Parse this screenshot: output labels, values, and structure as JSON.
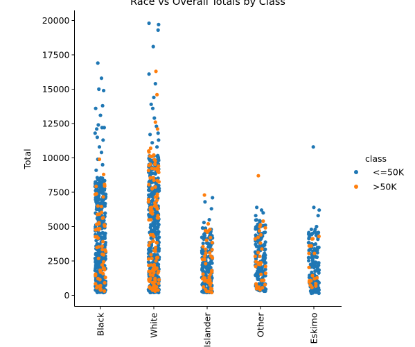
{
  "chart_data": {
    "type": "scatter",
    "subtype": "strip",
    "title": "Race vs Overall Totals by Class",
    "xlabel": "",
    "ylabel": "Total",
    "categories": [
      "Black",
      "White",
      "Islander",
      "Other",
      "Eskimo"
    ],
    "yticks": [
      "0",
      "2500",
      "5000",
      "7500",
      "10000",
      "12500",
      "15000",
      "17500",
      "20000"
    ],
    "ylim": [
      -800,
      20800
    ],
    "grid": false,
    "legend": {
      "title": "class",
      "placement": "center-right",
      "entries": [
        {
          "name": "<=50K",
          "color": "#1f77b4"
        },
        {
          "name": ">50K",
          "color": "#ff7f0e"
        }
      ]
    },
    "series": [
      {
        "name": "<=50K",
        "color": "#1f77b4",
        "ranges": [
          {
            "category": "Black",
            "min": 200,
            "max": 8600,
            "count": 360
          },
          {
            "category": "White",
            "min": 200,
            "max": 10200,
            "count": 380
          },
          {
            "category": "Islander",
            "min": 200,
            "max": 4900,
            "count": 170
          },
          {
            "category": "Other",
            "min": 300,
            "max": 5500,
            "count": 150
          },
          {
            "category": "Eskimo",
            "min": 150,
            "max": 4800,
            "count": 130
          }
        ],
        "outliers": [
          {
            "category": "Black",
            "x": -0.05,
            "y": 16900
          },
          {
            "category": "Black",
            "x": 0.02,
            "y": 15800
          },
          {
            "category": "Black",
            "x": -0.03,
            "y": 15000
          },
          {
            "category": "Black",
            "x": 0.06,
            "y": 14900
          },
          {
            "category": "Black",
            "x": 0.04,
            "y": 13800
          },
          {
            "category": "Black",
            "x": -0.09,
            "y": 13600
          },
          {
            "category": "Black",
            "x": 0.0,
            "y": 13100
          },
          {
            "category": "Black",
            "x": -0.04,
            "y": 12400
          },
          {
            "category": "Black",
            "x": 0.03,
            "y": 12200
          },
          {
            "category": "Black",
            "x": -0.07,
            "y": 12100
          },
          {
            "category": "Black",
            "x": 0.07,
            "y": 12200
          },
          {
            "category": "Black",
            "x": -0.1,
            "y": 11800
          },
          {
            "category": "Black",
            "x": -0.06,
            "y": 11500
          },
          {
            "category": "Black",
            "x": 0.05,
            "y": 11300
          },
          {
            "category": "Black",
            "x": -0.02,
            "y": 10800
          },
          {
            "category": "Black",
            "x": 0.02,
            "y": 10400
          },
          {
            "category": "Black",
            "x": -0.05,
            "y": 9900
          },
          {
            "category": "Black",
            "x": 0.04,
            "y": 9500
          },
          {
            "category": "Black",
            "x": -0.08,
            "y": 9100
          },
          {
            "category": "White",
            "x": -0.09,
            "y": 19800
          },
          {
            "category": "White",
            "x": 0.09,
            "y": 19700
          },
          {
            "category": "White",
            "x": 0.08,
            "y": 19300
          },
          {
            "category": "White",
            "x": -0.01,
            "y": 18100
          },
          {
            "category": "White",
            "x": -0.09,
            "y": 16100
          },
          {
            "category": "White",
            "x": 0.03,
            "y": 15400
          },
          {
            "category": "White",
            "x": 0.0,
            "y": 14400
          },
          {
            "category": "White",
            "x": -0.05,
            "y": 13900
          },
          {
            "category": "White",
            "x": -0.02,
            "y": 13600
          },
          {
            "category": "White",
            "x": 0.01,
            "y": 12900
          },
          {
            "category": "White",
            "x": 0.05,
            "y": 12300
          },
          {
            "category": "White",
            "x": -0.07,
            "y": 11700
          },
          {
            "category": "White",
            "x": 0.08,
            "y": 11800
          },
          {
            "category": "White",
            "x": 0.09,
            "y": 11300
          },
          {
            "category": "White",
            "x": -0.03,
            "y": 11100
          },
          {
            "category": "White",
            "x": 0.06,
            "y": 10800
          },
          {
            "category": "Islander",
            "x": 0.1,
            "y": 7100
          },
          {
            "category": "Islander",
            "x": -0.04,
            "y": 6800
          },
          {
            "category": "Islander",
            "x": 0.08,
            "y": 6300
          },
          {
            "category": "Islander",
            "x": 0.04,
            "y": 5500
          },
          {
            "category": "Islander",
            "x": -0.06,
            "y": 5300
          },
          {
            "category": "Other",
            "x": -0.07,
            "y": 6400
          },
          {
            "category": "Other",
            "x": 0.02,
            "y": 6200
          },
          {
            "category": "Other",
            "x": 0.05,
            "y": 6000
          },
          {
            "category": "Other",
            "x": -0.09,
            "y": 5800
          },
          {
            "category": "Eskimo",
            "x": -0.01,
            "y": 10800
          },
          {
            "category": "Eskimo",
            "x": 0.0,
            "y": 6400
          },
          {
            "category": "Eskimo",
            "x": 0.1,
            "y": 6200
          },
          {
            "category": "Eskimo",
            "x": 0.08,
            "y": 5800
          },
          {
            "category": "Eskimo",
            "x": 0.05,
            "y": 5000
          }
        ]
      },
      {
        "name": ">50K",
        "color": "#ff7f0e",
        "ranges": [
          {
            "category": "Black",
            "min": 300,
            "max": 8100,
            "count": 60
          },
          {
            "category": "White",
            "min": 300,
            "max": 10600,
            "count": 110
          },
          {
            "category": "Islander",
            "min": 200,
            "max": 4800,
            "count": 45
          },
          {
            "category": "Other",
            "min": 400,
            "max": 5300,
            "count": 30
          },
          {
            "category": "Eskimo",
            "min": 500,
            "max": 4300,
            "count": 18
          }
        ],
        "outliers": [
          {
            "category": "Black",
            "x": -0.02,
            "y": 9900
          },
          {
            "category": "Black",
            "x": 0.06,
            "y": 8800
          },
          {
            "category": "White",
            "x": 0.04,
            "y": 16300
          },
          {
            "category": "White",
            "x": 0.06,
            "y": 14600
          },
          {
            "category": "White",
            "x": 0.03,
            "y": 12600
          },
          {
            "category": "White",
            "x": 0.07,
            "y": 12100
          },
          {
            "category": "White",
            "x": -0.06,
            "y": 10700
          },
          {
            "category": "Islander",
            "x": -0.05,
            "y": 7300
          },
          {
            "category": "Islander",
            "x": 0.02,
            "y": 5200
          },
          {
            "category": "Other",
            "x": -0.04,
            "y": 8700
          },
          {
            "category": "Other",
            "x": 0.05,
            "y": 5400
          }
        ]
      }
    ]
  }
}
